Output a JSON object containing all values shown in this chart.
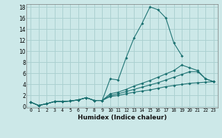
{
  "xlabel": "Humidex (Indice chaleur)",
  "xlim": [
    -0.5,
    23.5
  ],
  "ylim": [
    -0.2,
    18.5
  ],
  "yticks": [
    0,
    2,
    4,
    6,
    8,
    10,
    12,
    14,
    16,
    18
  ],
  "xticks": [
    0,
    1,
    2,
    3,
    4,
    5,
    6,
    7,
    8,
    9,
    10,
    11,
    12,
    13,
    14,
    15,
    16,
    17,
    18,
    19,
    20,
    21,
    22,
    23
  ],
  "xtick_labels": [
    "0",
    "1",
    "2",
    "3",
    "4",
    "5",
    "6",
    "7",
    "8",
    "9",
    "10",
    "11",
    "12",
    "13",
    "14",
    "15",
    "16",
    "17",
    "18",
    "19",
    "20",
    "21",
    "22",
    "23"
  ],
  "bg_color": "#cce8e8",
  "grid_color": "#aad0d0",
  "line_color": "#1a7070",
  "lines": [
    [
      0.8,
      0.2,
      0.5,
      0.9,
      0.9,
      1.0,
      1.2,
      1.6,
      1.1,
      1.1,
      5.0,
      4.8,
      8.8,
      12.4,
      15.0,
      18.0,
      17.5,
      16.0,
      11.5,
      9.2,
      null,
      null,
      null,
      null
    ],
    [
      0.8,
      0.2,
      0.5,
      0.9,
      0.9,
      1.0,
      1.2,
      1.6,
      1.1,
      1.1,
      2.3,
      2.6,
      3.1,
      3.7,
      4.2,
      4.7,
      5.3,
      5.9,
      6.5,
      7.5,
      7.0,
      6.5,
      5.0,
      4.5
    ],
    [
      0.8,
      0.2,
      0.5,
      0.9,
      0.9,
      1.0,
      1.2,
      1.6,
      1.1,
      1.1,
      2.0,
      2.3,
      2.7,
      3.1,
      3.5,
      3.9,
      4.3,
      4.8,
      5.3,
      5.8,
      6.3,
      6.3,
      5.0,
      4.5
    ],
    [
      0.8,
      0.2,
      0.5,
      0.9,
      0.9,
      1.0,
      1.2,
      1.6,
      1.1,
      1.1,
      1.8,
      2.0,
      2.3,
      2.6,
      2.8,
      3.0,
      3.3,
      3.6,
      3.8,
      4.0,
      4.2,
      4.3,
      4.4,
      4.5
    ]
  ]
}
